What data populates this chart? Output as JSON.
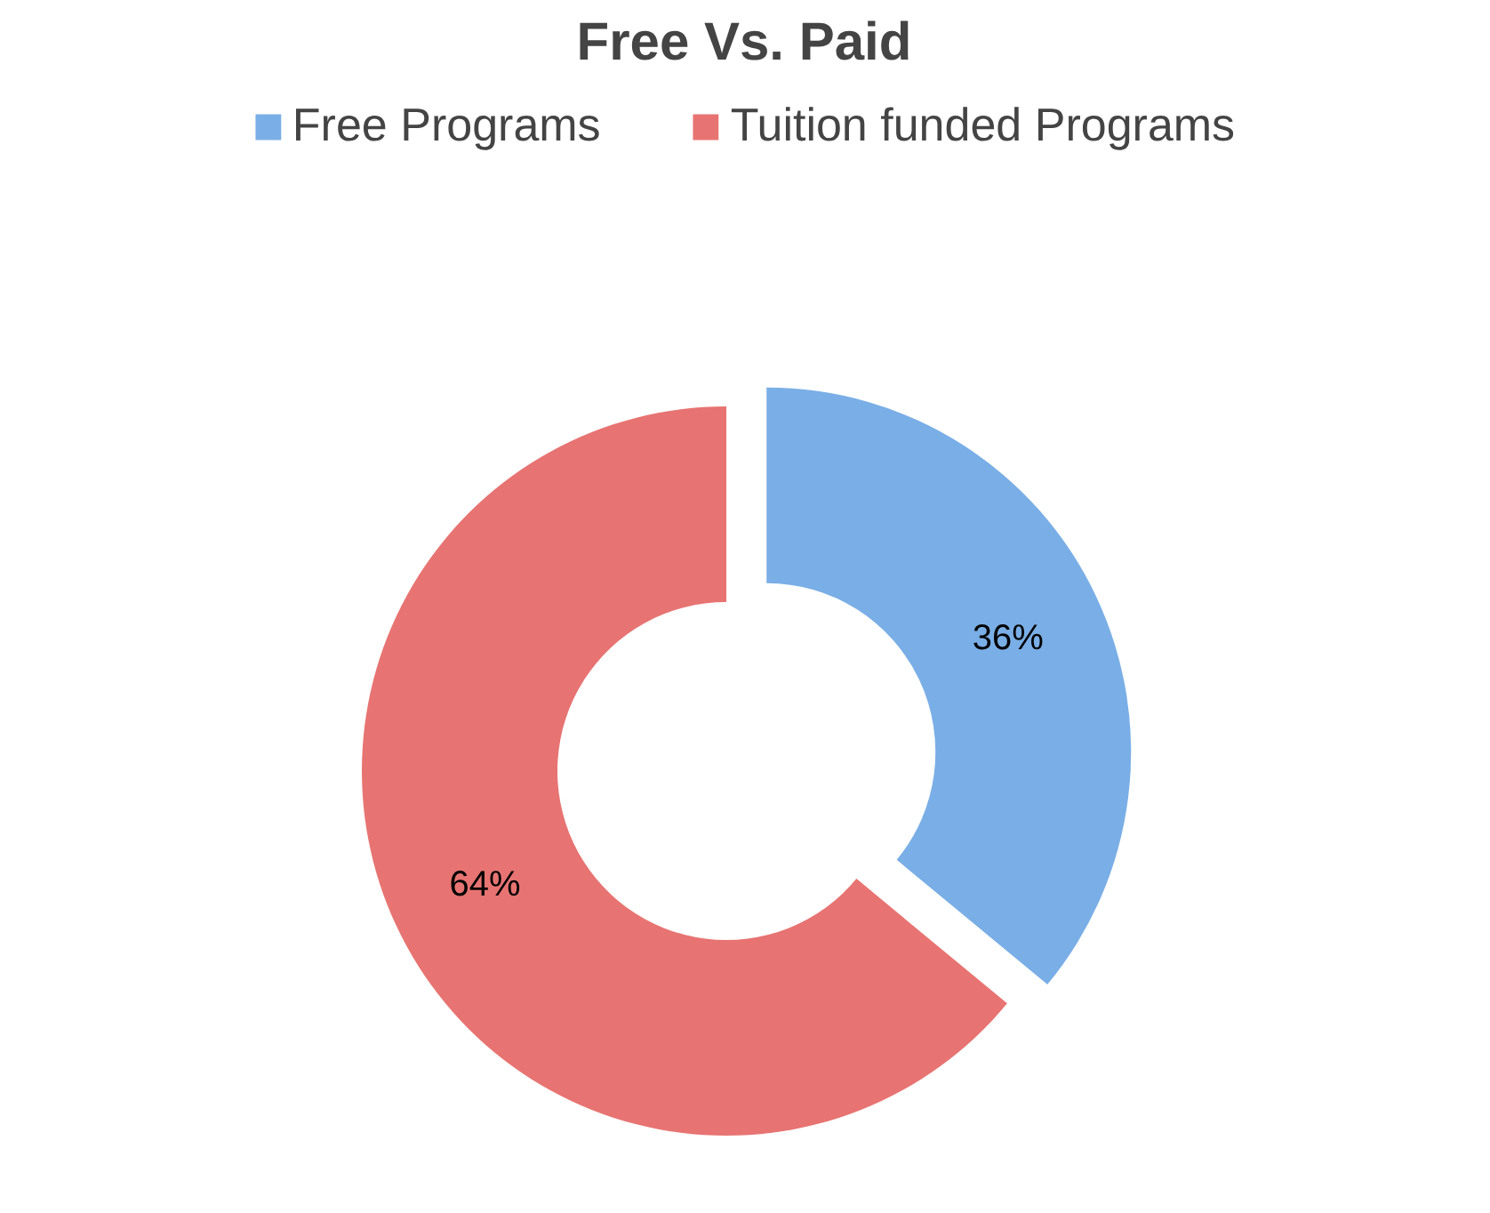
{
  "chart_data": {
    "type": "donut",
    "title": "Free Vs. Paid",
    "categories": [
      "Free Programs",
      "Tuition funded Programs"
    ],
    "values": [
      36,
      64
    ],
    "colors": [
      "#7aaee6",
      "#e77472"
    ],
    "value_labels": [
      "36%",
      "64%"
    ],
    "legend": "top"
  }
}
